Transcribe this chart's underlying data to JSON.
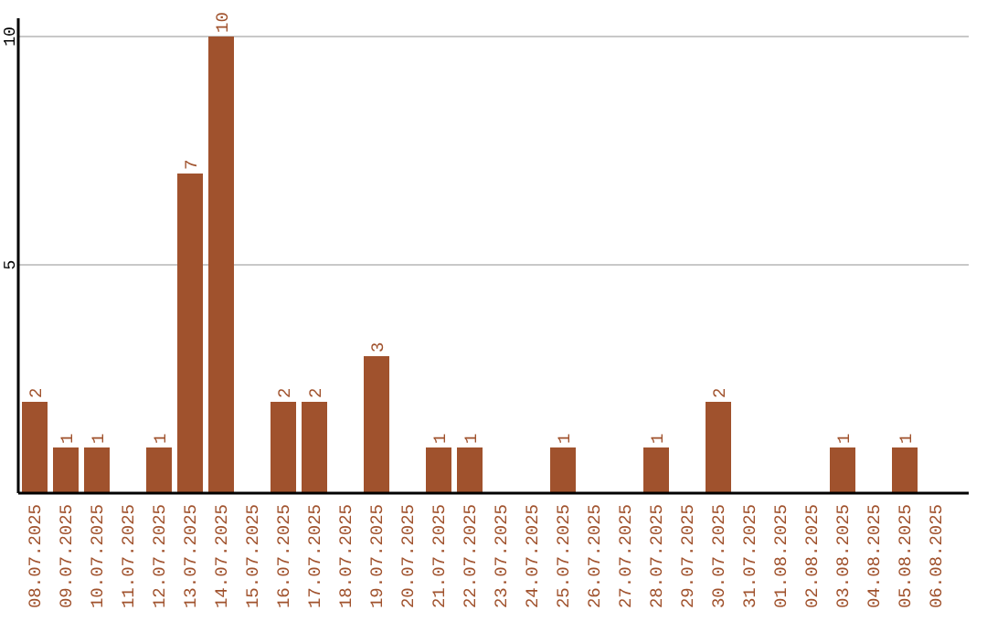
{
  "chart_data": {
    "type": "bar",
    "categories": [
      "08.07.2025",
      "09.07.2025",
      "10.07.2025",
      "11.07.2025",
      "12.07.2025",
      "13.07.2025",
      "14.07.2025",
      "15.07.2025",
      "16.07.2025",
      "17.07.2025",
      "18.07.2025",
      "19.07.2025",
      "20.07.2025",
      "21.07.2025",
      "22.07.2025",
      "23.07.2025",
      "24.07.2025",
      "25.07.2025",
      "26.07.2025",
      "27.07.2025",
      "28.07.2025",
      "29.07.2025",
      "30.07.2025",
      "31.07.2025",
      "01.08.2025",
      "02.08.2025",
      "03.08.2025",
      "04.08.2025",
      "05.08.2025",
      "06.08.2025"
    ],
    "values": [
      2,
      1,
      1,
      0,
      1,
      7,
      10,
      0,
      2,
      2,
      0,
      3,
      0,
      1,
      1,
      0,
      0,
      1,
      0,
      0,
      1,
      0,
      2,
      0,
      0,
      0,
      1,
      0,
      1,
      0
    ],
    "value_labels": [
      "2",
      "1",
      "1",
      null,
      "1",
      "7",
      "10",
      null,
      "2",
      "2",
      null,
      "3",
      null,
      "1",
      "1",
      null,
      null,
      "1",
      null,
      null,
      "1",
      null,
      "2",
      null,
      null,
      null,
      "1",
      null,
      "1",
      null
    ],
    "color": "#a0522d",
    "ylim": [
      0,
      10.4
    ],
    "yticks": [
      5,
      10
    ],
    "grid": "y"
  }
}
